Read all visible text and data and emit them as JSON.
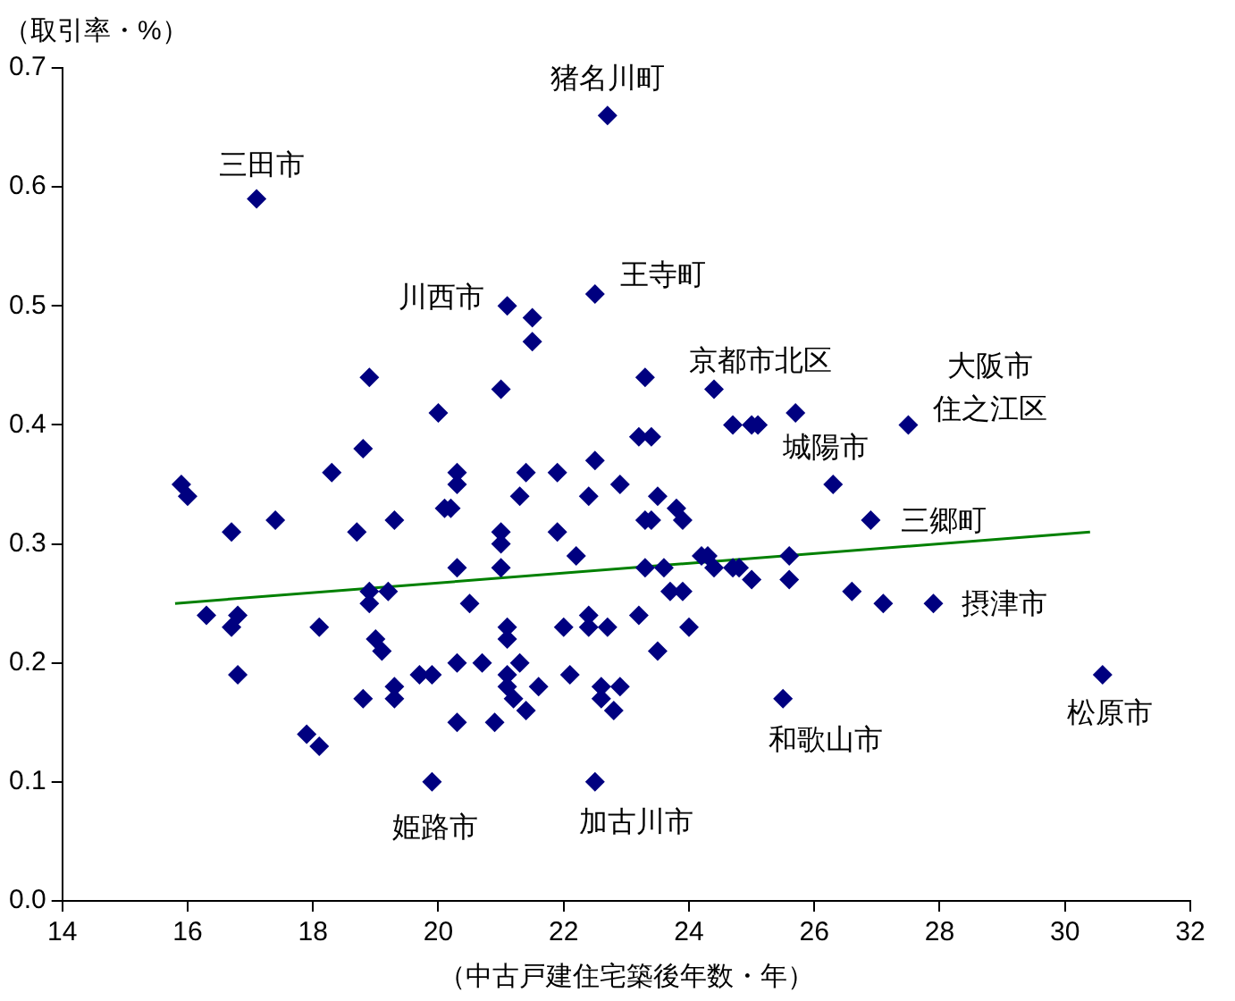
{
  "chart_data": {
    "type": "scatter",
    "xlabel": "（中古戸建住宅築後年数・年）",
    "ylabel": "（取引率・%）",
    "xlim": [
      14,
      32
    ],
    "xticks": [
      14,
      16,
      18,
      20,
      22,
      24,
      26,
      28,
      30,
      32
    ],
    "ylim": [
      0,
      0.7
    ],
    "yticks": [
      {
        "value": 0,
        "label": "0.0"
      },
      0.1,
      0.2,
      0.3,
      0.4,
      0.5,
      0.6,
      0.7
    ],
    "grid": false,
    "legend": false,
    "series": [
      {
        "marker": "diamond",
        "color": "#000080",
        "x": [
          22.7,
          17.1,
          21.1,
          21.5,
          21.5,
          22.5,
          18.9,
          21.0,
          23.3,
          24.4,
          20.0,
          24.7,
          25.0,
          25.1,
          25.7,
          27.5,
          23.2,
          23.4,
          22.5,
          18.3,
          18.8,
          20.3,
          20.3,
          20.2,
          20.1,
          21.4,
          21.9,
          21.3,
          21.9,
          22.4,
          22.9,
          23.5,
          23.8,
          23.3,
          23.4,
          23.9,
          22.2,
          21.0,
          21.0,
          20.3,
          21.0,
          20.5,
          23.3,
          23.6,
          24.2,
          24.3,
          24.4,
          24.7,
          24.8,
          25.0,
          23.7,
          23.9,
          23.2,
          24.0,
          23.5,
          22.4,
          22.4,
          22.7,
          22.0,
          22.1,
          22.9,
          22.6,
          22.6,
          22.8,
          21.6,
          21.4,
          21.2,
          20.9,
          21.1,
          21.1,
          21.3,
          21.1,
          21.1,
          20.7,
          20.3,
          19.9,
          20.3,
          19.9,
          22.5,
          15.9,
          16.0,
          17.4,
          16.7,
          18.7,
          19.3,
          18.9,
          18.9,
          19.2,
          16.3,
          16.8,
          16.7,
          18.1,
          19.0,
          19.1,
          16.8,
          19.3,
          19.7,
          18.8,
          19.3,
          17.9,
          18.1,
          26.3,
          26.9,
          25.6,
          25.6,
          25.5,
          30.6,
          26.6,
          27.1,
          27.9
        ],
        "values": [
          0.66,
          0.59,
          0.5,
          0.49,
          0.47,
          0.51,
          0.44,
          0.43,
          0.44,
          0.43,
          0.41,
          0.4,
          0.4,
          0.4,
          0.41,
          0.4,
          0.39,
          0.39,
          0.37,
          0.36,
          0.38,
          0.36,
          0.35,
          0.33,
          0.33,
          0.36,
          0.36,
          0.34,
          0.31,
          0.34,
          0.35,
          0.34,
          0.33,
          0.32,
          0.32,
          0.32,
          0.29,
          0.3,
          0.31,
          0.28,
          0.28,
          0.25,
          0.28,
          0.28,
          0.29,
          0.29,
          0.28,
          0.28,
          0.28,
          0.27,
          0.26,
          0.26,
          0.24,
          0.23,
          0.21,
          0.24,
          0.23,
          0.23,
          0.23,
          0.19,
          0.18,
          0.18,
          0.17,
          0.16,
          0.18,
          0.16,
          0.17,
          0.15,
          0.19,
          0.18,
          0.2,
          0.23,
          0.22,
          0.2,
          0.2,
          0.19,
          0.15,
          0.1,
          0.1,
          0.35,
          0.34,
          0.32,
          0.31,
          0.31,
          0.32,
          0.26,
          0.25,
          0.26,
          0.24,
          0.24,
          0.23,
          0.23,
          0.22,
          0.21,
          0.19,
          0.18,
          0.19,
          0.17,
          0.17,
          0.14,
          0.13,
          0.35,
          0.32,
          0.29,
          0.27,
          0.17,
          0.19,
          0.26,
          0.25,
          0.25
        ]
      },
      {
        "type": "line",
        "marker": "none",
        "color": "#008000",
        "x": [
          15.8,
          30.4
        ],
        "values": [
          0.25,
          0.31
        ]
      }
    ],
    "annotations": [
      {
        "text": "猪名川町",
        "x": 22.7,
        "y": 0.66
      },
      {
        "text": "三田市",
        "x": 17.1,
        "y": 0.59
      },
      {
        "text": "川西市",
        "x": 21.1,
        "y": 0.5
      },
      {
        "text": "王寺町",
        "x": 22.5,
        "y": 0.51
      },
      {
        "text": "京都市北区",
        "x": 24.4,
        "y": 0.43
      },
      {
        "text": "大阪市住之江区",
        "x": 27.5,
        "y": 0.4
      },
      {
        "text": "城陽市",
        "x": 26.3,
        "y": 0.35
      },
      {
        "text": "三郷町",
        "x": 26.9,
        "y": 0.32
      },
      {
        "text": "摂津市",
        "x": 27.9,
        "y": 0.25
      },
      {
        "text": "松原市",
        "x": 30.6,
        "y": 0.19
      },
      {
        "text": "和歌山市",
        "x": 25.5,
        "y": 0.17
      },
      {
        "text": "加古川市",
        "x": 22.5,
        "y": 0.1
      },
      {
        "text": "姫路市",
        "x": 19.9,
        "y": 0.1
      }
    ]
  }
}
